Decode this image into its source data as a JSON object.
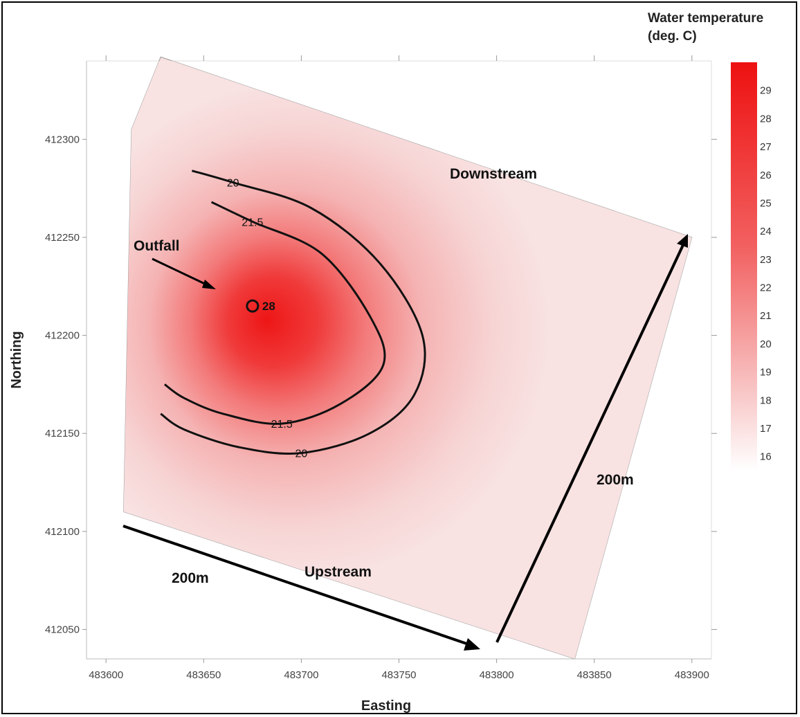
{
  "chart_data": {
    "type": "heatmap",
    "x_axis": {
      "label": "Easting",
      "ticks": [
        483600,
        483650,
        483700,
        483750,
        483800,
        483850,
        483900
      ],
      "range": [
        483590,
        483910
      ]
    },
    "y_axis": {
      "label": "Northing",
      "ticks": [
        412050,
        412100,
        412150,
        412200,
        412250,
        412300
      ],
      "range": [
        412035,
        412340
      ]
    },
    "legend": {
      "title_line1": "Water temperature",
      "title_line2": "(deg. C)",
      "ticks": [
        29,
        28,
        27,
        26,
        25,
        24,
        23,
        22,
        21,
        20,
        19,
        18,
        17,
        16
      ],
      "range": [
        15.5,
        30
      ],
      "placement": "right",
      "color_low": "#ffffff",
      "color_high": "#ee1111"
    },
    "domain_polygon": [
      [
        483613,
        412305
      ],
      [
        483628,
        412342
      ],
      [
        483900,
        412250
      ],
      [
        483840,
        412035
      ],
      [
        483609,
        412110
      ]
    ],
    "outfall_point": {
      "easting": 483675,
      "northing": 412215,
      "label": "28"
    },
    "contours": [
      {
        "level": "20",
        "label": "20",
        "points": [
          [
            483644,
            412284
          ],
          [
            483665,
            412278
          ],
          [
            483705,
            412265
          ],
          [
            483740,
            412237
          ],
          [
            483762,
            412200
          ],
          [
            483758,
            412170
          ],
          [
            483735,
            412150
          ],
          [
            483700,
            412140
          ],
          [
            483668,
            412143
          ],
          [
            483640,
            412152
          ],
          [
            483628,
            412160
          ]
        ]
      },
      {
        "level": "21.5",
        "label": "21.5",
        "points": [
          [
            483654,
            412268
          ],
          [
            483675,
            412258
          ],
          [
            483710,
            412242
          ],
          [
            483735,
            412210
          ],
          [
            483742,
            412185
          ],
          [
            483720,
            412165
          ],
          [
            483690,
            412155
          ],
          [
            483660,
            412160
          ],
          [
            483640,
            412168
          ],
          [
            483630,
            412175
          ]
        ]
      }
    ],
    "annotations": {
      "outfall": "Outfall",
      "downstream": "Downstream",
      "upstream": "Upstream",
      "scale_bottom": "200m",
      "scale_right": "200m"
    }
  }
}
